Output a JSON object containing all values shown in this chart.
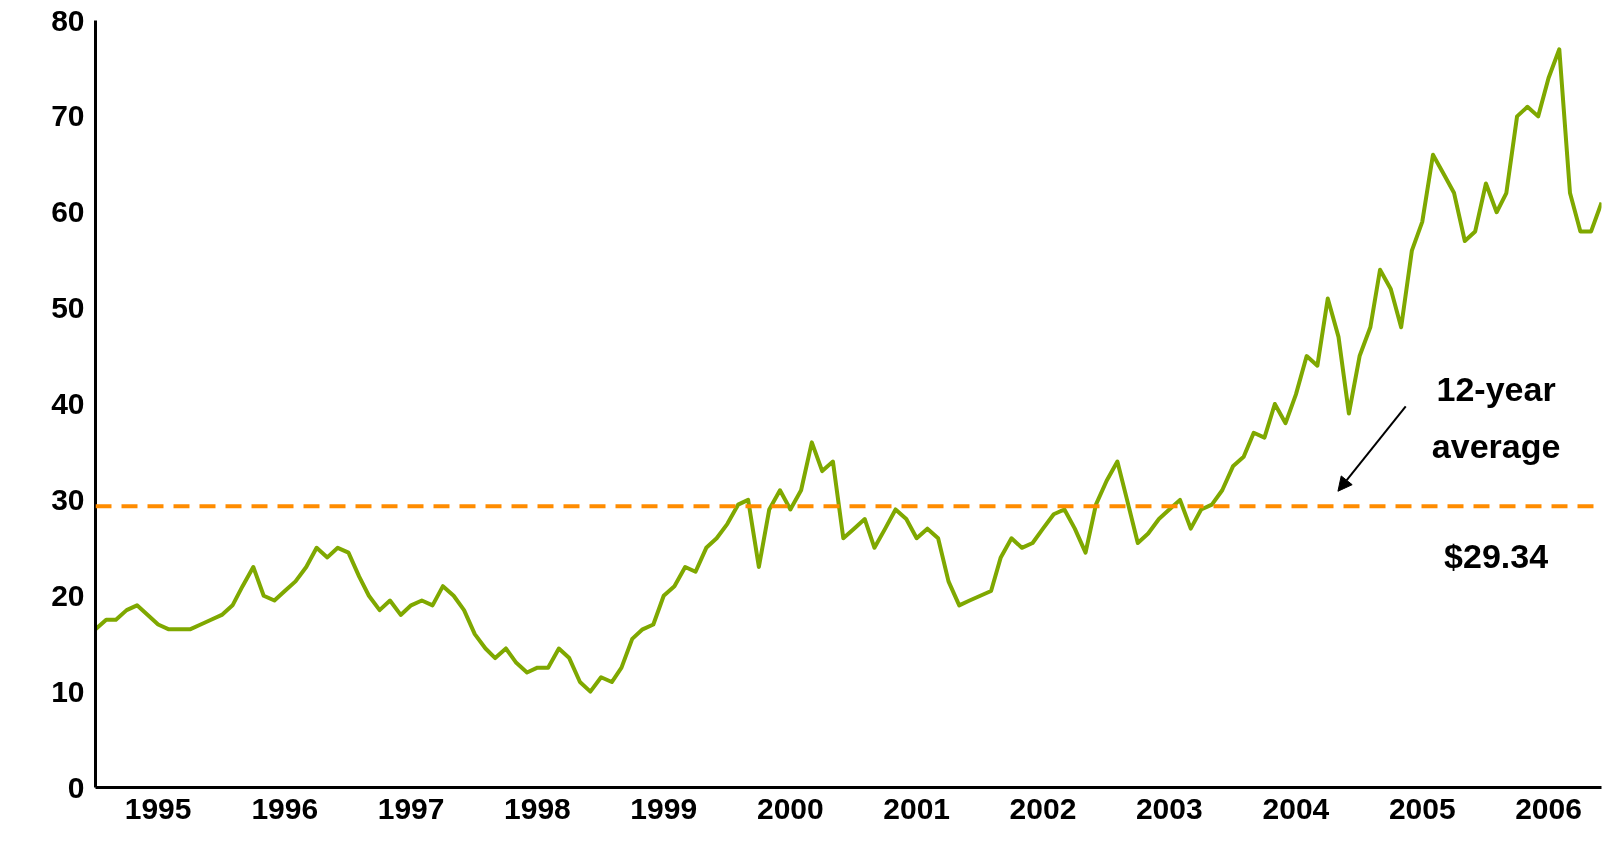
{
  "chart_data": {
    "type": "line",
    "x": [
      "1995-01",
      "1995-02",
      "1995-03",
      "1995-04",
      "1995-05",
      "1995-06",
      "1995-07",
      "1995-08",
      "1995-09",
      "1995-10",
      "1995-11",
      "1995-12",
      "1996-01",
      "1996-02",
      "1996-03",
      "1996-04",
      "1996-05",
      "1996-06",
      "1996-07",
      "1996-08",
      "1996-09",
      "1996-10",
      "1996-11",
      "1996-12",
      "1997-01",
      "1997-02",
      "1997-03",
      "1997-04",
      "1997-05",
      "1997-06",
      "1997-07",
      "1997-08",
      "1997-09",
      "1997-10",
      "1997-11",
      "1997-12",
      "1998-01",
      "1998-02",
      "1998-03",
      "1998-04",
      "1998-05",
      "1998-06",
      "1998-07",
      "1998-08",
      "1998-09",
      "1998-10",
      "1998-11",
      "1998-12",
      "1999-01",
      "1999-02",
      "1999-03",
      "1999-04",
      "1999-05",
      "1999-06",
      "1999-07",
      "1999-08",
      "1999-09",
      "1999-10",
      "1999-11",
      "1999-12",
      "2000-01",
      "2000-02",
      "2000-03",
      "2000-04",
      "2000-05",
      "2000-06",
      "2000-07",
      "2000-08",
      "2000-09",
      "2000-10",
      "2000-11",
      "2000-12",
      "2001-01",
      "2001-02",
      "2001-03",
      "2001-04",
      "2001-05",
      "2001-06",
      "2001-07",
      "2001-08",
      "2001-09",
      "2001-10",
      "2001-11",
      "2001-12",
      "2002-01",
      "2002-02",
      "2002-03",
      "2002-04",
      "2002-05",
      "2002-06",
      "2002-07",
      "2002-08",
      "2002-09",
      "2002-10",
      "2002-11",
      "2002-12",
      "2003-01",
      "2003-02",
      "2003-03",
      "2003-04",
      "2003-05",
      "2003-06",
      "2003-07",
      "2003-08",
      "2003-09",
      "2003-10",
      "2003-11",
      "2003-12",
      "2004-01",
      "2004-02",
      "2004-03",
      "2004-04",
      "2004-05",
      "2004-06",
      "2004-07",
      "2004-08",
      "2004-09",
      "2004-10",
      "2004-11",
      "2004-12",
      "2005-01",
      "2005-02",
      "2005-03",
      "2005-04",
      "2005-05",
      "2005-06",
      "2005-07",
      "2005-08",
      "2005-09",
      "2005-10",
      "2005-11",
      "2005-12",
      "2006-01",
      "2006-02",
      "2006-03",
      "2006-04",
      "2006-05",
      "2006-06",
      "2006-07",
      "2006-08",
      "2006-09",
      "2006-10",
      "2006-11",
      "2006-12"
    ],
    "series": [
      {
        "color": "#7fa800",
        "values": [
          16.5,
          17.5,
          17.5,
          18.5,
          19,
          18,
          17,
          16.5,
          16.5,
          16.5,
          17,
          17.5,
          18,
          19,
          21,
          23,
          20,
          19.5,
          20.5,
          21.5,
          23,
          25,
          24,
          25,
          24.5,
          22,
          20,
          18.5,
          19.5,
          18,
          19,
          19.5,
          19,
          21,
          20,
          18.5,
          16,
          14.5,
          13.5,
          14.5,
          13,
          12,
          12.5,
          12.5,
          14.5,
          13.5,
          11,
          10,
          11.5,
          11,
          12.5,
          15.5,
          16.5,
          17,
          20,
          21,
          23,
          22.5,
          25,
          26,
          27.5,
          29.5,
          30,
          23,
          29,
          31,
          29,
          31,
          36,
          33,
          34,
          26,
          27,
          28,
          25,
          27,
          29,
          28,
          26,
          27,
          26,
          21.5,
          19,
          19.5,
          20,
          20.5,
          24,
          26,
          25,
          25.5,
          27,
          28.5,
          29,
          27,
          24.5,
          29.5,
          32,
          34,
          30,
          25.5,
          26.5,
          28,
          29,
          30,
          27,
          29,
          29.5,
          31,
          33.5,
          34.5,
          37,
          36.5,
          40,
          38,
          41,
          45,
          44,
          51,
          47,
          39,
          45,
          48,
          54,
          52,
          48,
          56,
          59,
          66,
          64,
          62,
          57,
          58,
          63,
          60,
          62,
          70,
          71,
          70,
          74,
          77,
          62,
          58,
          58,
          61
        ]
      }
    ],
    "ylim": [
      0,
      80
    ],
    "yticks": [
      0,
      10,
      20,
      30,
      40,
      50,
      60,
      70,
      80
    ],
    "xlim": [
      "1995-01",
      "2006-12"
    ],
    "xticks": [
      {
        "value": "1995-07",
        "label": "1995"
      },
      {
        "value": "1996-07",
        "label": "1996"
      },
      {
        "value": "1997-07",
        "label": "1997"
      },
      {
        "value": "1998-07",
        "label": "1998"
      },
      {
        "value": "1999-07",
        "label": "1999"
      },
      {
        "value": "2000-07",
        "label": "2000"
      },
      {
        "value": "2001-07",
        "label": "2001"
      },
      {
        "value": "2002-07",
        "label": "2002"
      },
      {
        "value": "2003-07",
        "label": "2003"
      },
      {
        "value": "2004-07",
        "label": "2004"
      },
      {
        "value": "2005-07",
        "label": "2005"
      },
      {
        "value": "2006-07",
        "label": "2006"
      }
    ],
    "ref_lines": [
      {
        "axis": "y",
        "value": 29.34,
        "label": "12-year average $29.34",
        "color": "#ff8c00",
        "line_style": "dashed"
      }
    ],
    "grid": false,
    "marker": "none",
    "line_style": "solid"
  }
}
